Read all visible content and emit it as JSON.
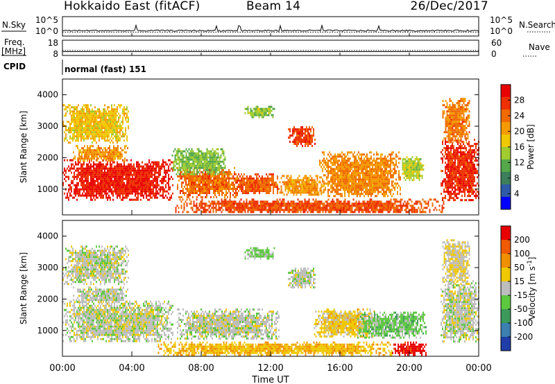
{
  "header": {
    "title": "Hokkaido East (fitACF)",
    "beam": "Beam 14",
    "date": "26/Dec/2017"
  },
  "noise_panel": {
    "left_label": "N.Sky",
    "right_label": "N.Search",
    "tick_top": "10^5",
    "tick_bottom": "10^0",
    "sky_level": 1.4,
    "search_level": 1.0
  },
  "freq_panel": {
    "left_label_1": "Freq.",
    "left_label_2": "[MHz]",
    "left_tick_top": "18",
    "left_tick_bottom": "8",
    "right_label": "Nave",
    "right_tick_top": "60",
    "right_tick_bottom": "0",
    "frequency_mhz": 10.5,
    "nave": 20
  },
  "cpid": {
    "label": "CPID",
    "value": "normal (fast) 151"
  },
  "x_axis": {
    "label": "Time UT",
    "ticks": [
      "00:00",
      "04:00",
      "08:00",
      "12:00",
      "16:00",
      "20:00",
      "00:00"
    ]
  },
  "power_colorbar": {
    "label": "Power [dB]",
    "ticks": [
      "4",
      "8",
      "12",
      "16",
      "20",
      "24",
      "28"
    ],
    "colors": [
      "#0000ff",
      "#2f5aa8",
      "#3c7f5a",
      "#55a84a",
      "#a0cc30",
      "#f0c800",
      "#f59a00",
      "#f06a00",
      "#ee3000",
      "#e80000"
    ]
  },
  "velocity_colorbar": {
    "label": "Velocity [m s^-1]",
    "ticks": [
      "200",
      "100",
      "50",
      "15",
      "-15",
      "-50",
      "-100",
      "-200"
    ],
    "colors": [
      "#1f3ea8",
      "#3c7fb0",
      "#3c9a5a",
      "#5cc840",
      "#bdbdbd",
      "#f0c800",
      "#f09000",
      "#f05a00",
      "#e80000"
    ]
  },
  "chart_data": [
    {
      "type": "heatmap",
      "name": "power",
      "xlabel": "Time UT",
      "ylabel": "Slant Range [km]",
      "xlim": [
        "00:00",
        "24:00"
      ],
      "ylim": [
        180,
        4500
      ],
      "yticks": [
        1000,
        2000,
        3000,
        4000
      ],
      "ytick_labels": [
        "1000",
        "2000",
        "3000",
        "4000"
      ],
      "zlabel": "Power [dB]",
      "zlim": [
        0,
        32
      ],
      "regions": [
        {
          "t0": 0.0,
          "t1": 6.4,
          "r0": 650,
          "r1": 1950,
          "value": 29
        },
        {
          "t0": 0.6,
          "t1": 3.8,
          "r0": 1900,
          "r1": 2400,
          "value": 21
        },
        {
          "t0": 0.0,
          "t1": 3.8,
          "r0": 2500,
          "r1": 3700,
          "value": 18
        },
        {
          "t0": 6.6,
          "t1": 10.2,
          "r0": 750,
          "r1": 1700,
          "value": 24
        },
        {
          "t0": 6.3,
          "t1": 9.4,
          "r0": 1500,
          "r1": 2300,
          "value": 13
        },
        {
          "t0": 9.8,
          "t1": 12.5,
          "r0": 850,
          "r1": 1500,
          "value": 25
        },
        {
          "t0": 10.5,
          "t1": 12.2,
          "r0": 3300,
          "r1": 3650,
          "value": 14
        },
        {
          "t0": 13.0,
          "t1": 14.6,
          "r0": 2400,
          "r1": 3000,
          "value": 27
        },
        {
          "t0": 12.5,
          "t1": 15.0,
          "r0": 800,
          "r1": 1450,
          "value": 21
        },
        {
          "t0": 14.8,
          "t1": 19.5,
          "r0": 750,
          "r1": 2200,
          "value": 22
        },
        {
          "t0": 19.5,
          "t1": 20.8,
          "r0": 1300,
          "r1": 2050,
          "value": 15
        },
        {
          "t0": 21.8,
          "t1": 24.0,
          "r0": 650,
          "r1": 2600,
          "value": 28
        },
        {
          "t0": 21.9,
          "t1": 23.5,
          "r0": 2500,
          "r1": 3900,
          "value": 23
        },
        {
          "t0": 6.5,
          "t1": 22.0,
          "r0": 250,
          "r1": 700,
          "value": 26
        }
      ]
    },
    {
      "type": "heatmap",
      "name": "velocity",
      "xlabel": "Time UT",
      "ylabel": "Slant Range [km]",
      "xlim": [
        "00:00",
        "24:00"
      ],
      "ylim": [
        180,
        4500
      ],
      "yticks": [
        1000,
        2000,
        3000,
        4000
      ],
      "ytick_labels": [
        "1000",
        "2000",
        "3000",
        "4000"
      ],
      "zlabel": "Velocity [m s^-1]",
      "zlim": [
        -200,
        200
      ],
      "regions": [
        {
          "t0": 0.0,
          "t1": 6.4,
          "r0": 650,
          "r1": 1950,
          "value": 0
        },
        {
          "t0": 0.6,
          "t1": 3.8,
          "r0": 1900,
          "r1": 2400,
          "value": 0
        },
        {
          "t0": 0.0,
          "t1": 3.8,
          "r0": 2500,
          "r1": 3700,
          "value": 0
        },
        {
          "t0": 6.6,
          "t1": 12.5,
          "r0": 750,
          "r1": 1700,
          "value": 0
        },
        {
          "t0": 10.5,
          "t1": 12.2,
          "r0": 3300,
          "r1": 3650,
          "value": -30
        },
        {
          "t0": 13.0,
          "t1": 14.6,
          "r0": 2400,
          "r1": 3000,
          "value": 0
        },
        {
          "t0": 14.5,
          "t1": 18.0,
          "r0": 800,
          "r1": 1700,
          "value": 40
        },
        {
          "t0": 17.0,
          "t1": 21.0,
          "r0": 800,
          "r1": 1600,
          "value": -40
        },
        {
          "t0": 21.8,
          "t1": 24.0,
          "r0": 650,
          "r1": 2600,
          "value": 0
        },
        {
          "t0": 21.9,
          "t1": 23.5,
          "r0": 2500,
          "r1": 3900,
          "value": 20
        },
        {
          "t0": 5.5,
          "t1": 19.0,
          "r0": 250,
          "r1": 650,
          "value": 60
        },
        {
          "t0": 19.0,
          "t1": 21.0,
          "r0": 250,
          "r1": 650,
          "value": 180
        }
      ]
    }
  ]
}
